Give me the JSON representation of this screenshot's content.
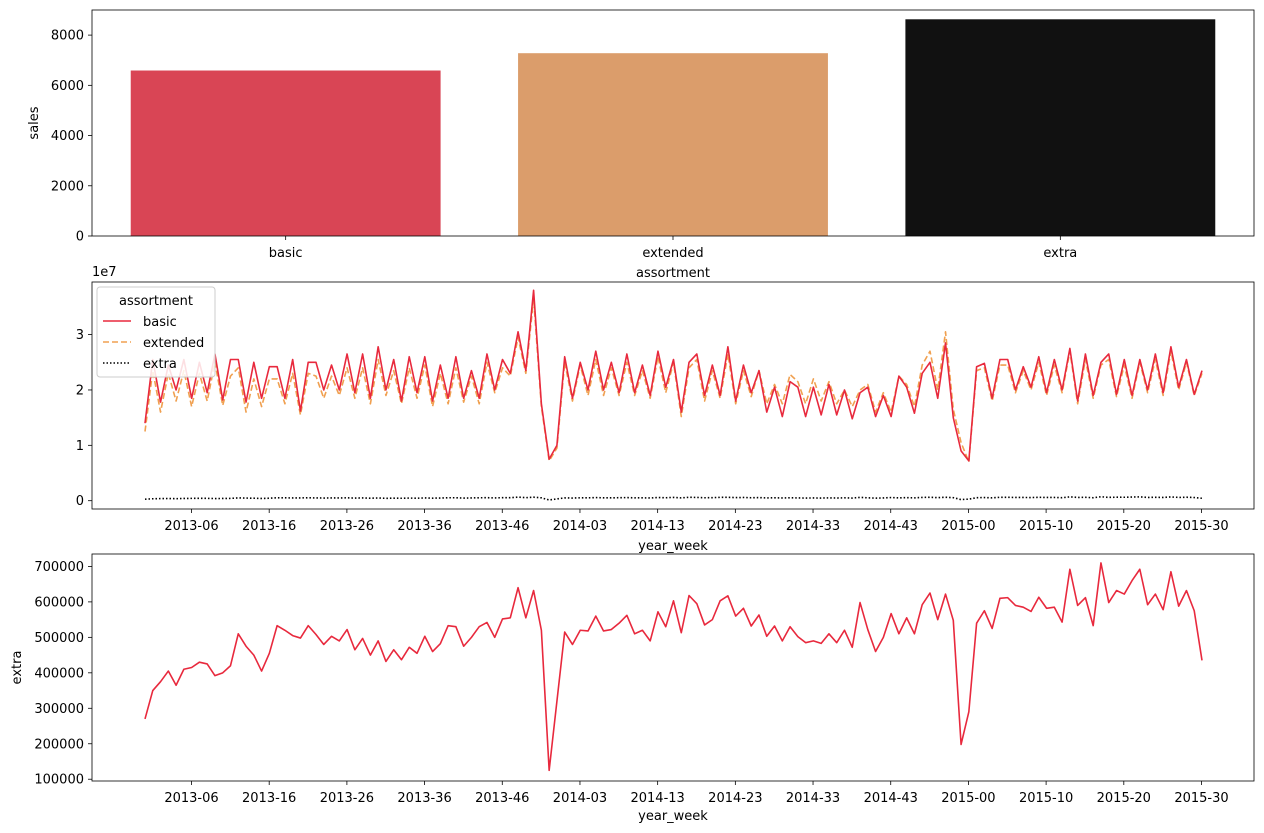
{
  "chart_data": [
    {
      "type": "bar",
      "categories": [
        "basic",
        "extended",
        "extra"
      ],
      "values": [
        6590,
        7280,
        8630
      ],
      "colors": [
        "#d94555",
        "#db9d6b",
        "#111111"
      ],
      "xlabel": "assortment",
      "ylabel": "sales",
      "ylim": [
        0,
        9000
      ],
      "yticks": [
        "0",
        "2000",
        "4000",
        "6000",
        "8000"
      ]
    },
    {
      "type": "line",
      "xlabel": "year_week",
      "ylabel": "",
      "y_multiplier_label": "1e7",
      "yticks": [
        "0",
        "1",
        "2",
        "3"
      ],
      "ylim": [
        -0.15,
        3.95
      ],
      "xticks": [
        "2013-06",
        "2013-16",
        "2013-26",
        "2013-36",
        "2013-46",
        "2014-03",
        "2014-13",
        "2014-23",
        "2014-33",
        "2014-43",
        "2015-00",
        "2015-10",
        "2015-20",
        "2015-30"
      ],
      "legend": {
        "title": "assortment",
        "position": "top-left"
      },
      "series": [
        {
          "name": "basic",
          "color": "#e8293d",
          "style": "solid",
          "values": [
            1.4,
            2.55,
            1.78,
            2.45,
            2.0,
            2.55,
            1.85,
            2.5,
            1.95,
            2.65,
            1.82,
            2.55,
            2.55,
            1.78,
            2.5,
            1.85,
            2.42,
            2.42,
            1.85,
            2.55,
            1.62,
            2.5,
            2.5,
            2.0,
            2.45,
            2.0,
            2.65,
            1.95,
            2.65,
            1.85,
            2.78,
            2.0,
            2.55,
            1.8,
            2.6,
            1.95,
            2.6,
            1.8,
            2.45,
            1.85,
            2.6,
            1.85,
            2.35,
            1.85,
            2.65,
            2.0,
            2.55,
            2.3,
            3.05,
            2.35,
            3.8,
            1.75,
            0.75,
            1.0,
            2.6,
            1.85,
            2.5,
            2.0,
            2.7,
            2.0,
            2.5,
            1.95,
            2.65,
            1.95,
            2.45,
            1.9,
            2.7,
            2.05,
            2.55,
            1.6,
            2.5,
            2.65,
            1.9,
            2.45,
            1.9,
            2.78,
            1.8,
            2.45,
            1.95,
            2.35,
            1.6,
            2.05,
            1.52,
            2.15,
            2.05,
            1.52,
            2.05,
            1.55,
            2.1,
            1.55,
            2.0,
            1.48,
            1.95,
            2.05,
            1.52,
            1.9,
            1.52,
            2.25,
            2.05,
            1.58,
            2.3,
            2.5,
            1.85,
            2.85,
            1.5,
            0.9,
            0.72,
            2.42,
            2.48,
            1.85,
            2.55,
            2.55,
            2.0,
            2.42,
            2.05,
            2.6,
            1.95,
            2.55,
            2.0,
            2.75,
            1.8,
            2.65,
            1.9,
            2.5,
            2.65,
            1.92,
            2.55,
            1.9,
            2.55,
            2.0,
            2.65,
            1.95,
            2.78,
            2.05,
            2.55,
            1.92,
            2.35
          ]
        },
        {
          "name": "extended",
          "color": "#f0a050",
          "style": "dashed",
          "values": [
            1.25,
            2.35,
            1.6,
            2.3,
            1.8,
            2.35,
            1.7,
            2.3,
            1.8,
            2.5,
            1.72,
            2.25,
            2.4,
            1.6,
            2.2,
            1.7,
            2.2,
            2.2,
            1.75,
            2.3,
            1.55,
            2.3,
            2.25,
            1.85,
            2.25,
            1.9,
            2.4,
            1.85,
            2.4,
            1.75,
            2.55,
            1.9,
            2.35,
            1.75,
            2.4,
            1.85,
            2.45,
            1.7,
            2.3,
            1.75,
            2.4,
            1.78,
            2.25,
            1.75,
            2.5,
            1.95,
            2.4,
            2.25,
            2.95,
            2.3,
            3.65,
            1.7,
            0.72,
            0.95,
            2.5,
            1.8,
            2.45,
            1.9,
            2.55,
            1.9,
            2.4,
            1.9,
            2.5,
            1.9,
            2.35,
            1.85,
            2.6,
            1.95,
            2.5,
            1.52,
            2.4,
            2.55,
            1.8,
            2.35,
            1.85,
            2.65,
            1.75,
            2.35,
            1.88,
            2.35,
            1.75,
            2.1,
            1.75,
            2.28,
            2.15,
            1.75,
            2.2,
            1.8,
            2.15,
            1.75,
            2.0,
            1.7,
            2.0,
            2.1,
            1.6,
            1.95,
            1.6,
            2.25,
            2.1,
            1.7,
            2.45,
            2.7,
            2.0,
            3.05,
            1.65,
            1.05,
            0.7,
            2.35,
            2.4,
            1.8,
            2.45,
            2.45,
            1.95,
            2.35,
            2.0,
            2.5,
            1.9,
            2.45,
            1.95,
            2.7,
            1.75,
            2.55,
            1.85,
            2.45,
            2.55,
            1.88,
            2.45,
            1.85,
            2.5,
            1.95,
            2.55,
            1.9,
            2.7,
            2.0,
            2.5,
            1.9,
            2.3
          ]
        },
        {
          "name": "extra",
          "color": "#000000",
          "style": "dotted",
          "values": [
            0.027,
            0.035,
            0.038,
            0.04,
            0.036,
            0.041,
            0.042,
            0.043,
            0.042,
            0.039,
            0.04,
            0.042,
            0.051,
            0.047,
            0.045,
            0.04,
            0.045,
            0.053,
            0.052,
            0.05,
            0.05,
            0.053,
            0.05,
            0.048,
            0.05,
            0.049,
            0.052,
            0.047,
            0.05,
            0.045,
            0.049,
            0.043,
            0.046,
            0.044,
            0.047,
            0.045,
            0.05,
            0.046,
            0.048,
            0.053,
            0.053,
            0.047,
            0.05,
            0.053,
            0.054,
            0.05,
            0.055,
            0.055,
            0.064,
            0.055,
            0.063,
            0.052,
            0.013,
            0.032,
            0.051,
            0.048,
            0.052,
            0.052,
            0.056,
            0.052,
            0.052,
            0.054,
            0.056,
            0.051,
            0.052,
            0.049,
            0.057,
            0.053,
            0.06,
            0.051,
            0.061,
            0.059,
            0.053,
            0.055,
            0.06,
            0.061,
            0.056,
            0.058,
            0.053,
            0.056,
            0.05,
            0.053,
            0.049,
            0.053,
            0.05,
            0.048,
            0.049,
            0.048,
            0.051,
            0.048,
            0.052,
            0.047,
            0.06,
            0.052,
            0.046,
            0.05,
            0.057,
            0.051,
            0.055,
            0.051,
            0.059,
            0.062,
            0.055,
            0.062,
            0.055,
            0.02,
            0.029,
            0.054,
            0.057,
            0.052,
            0.061,
            0.061,
            0.059,
            0.058,
            0.057,
            0.061,
            0.058,
            0.058,
            0.054,
            0.069,
            0.059,
            0.061,
            0.053,
            0.071,
            0.06,
            0.063,
            0.062,
            0.066,
            0.069,
            0.059,
            0.062,
            0.058,
            0.068,
            0.059,
            0.063,
            0.057,
            0.044
          ]
        }
      ]
    },
    {
      "type": "line",
      "xlabel": "year_week",
      "ylabel": "extra",
      "ylim": [
        95000,
        735000
      ],
      "yticks": [
        "100000",
        "200000",
        "300000",
        "400000",
        "500000",
        "600000",
        "700000"
      ],
      "xticks": [
        "2013-06",
        "2013-16",
        "2013-26",
        "2013-36",
        "2013-46",
        "2014-03",
        "2014-13",
        "2014-23",
        "2014-33",
        "2014-43",
        "2015-00",
        "2015-10",
        "2015-20",
        "2015-30"
      ],
      "series": [
        {
          "name": "extra",
          "color": "#e8293d",
          "values": [
            270000,
            350000,
            375000,
            405000,
            365000,
            410000,
            415000,
            430000,
            425000,
            392000,
            400000,
            420000,
            510000,
            475000,
            450000,
            405000,
            455000,
            533000,
            520000,
            505000,
            498000,
            533000,
            508000,
            480000,
            503000,
            490000,
            522000,
            465000,
            497000,
            450000,
            490000,
            432000,
            465000,
            437000,
            472000,
            455000,
            503000,
            460000,
            482000,
            533000,
            530000,
            475000,
            500000,
            530000,
            542000,
            500000,
            552000,
            555000,
            640000,
            555000,
            632000,
            520000,
            125000,
            320000,
            515000,
            480000,
            520000,
            518000,
            560000,
            518000,
            522000,
            540000,
            562000,
            510000,
            520000,
            490000,
            572000,
            530000,
            603000,
            513000,
            618000,
            595000,
            535000,
            550000,
            603000,
            617000,
            560000,
            582000,
            532000,
            563000,
            503000,
            532000,
            490000,
            530000,
            502000,
            485000,
            490000,
            483000,
            510000,
            485000,
            520000,
            472000,
            598000,
            522000,
            460000,
            500000,
            567000,
            510000,
            555000,
            510000,
            592000,
            625000,
            550000,
            622000,
            548000,
            198000,
            290000,
            540000,
            575000,
            525000,
            610000,
            612000,
            590000,
            585000,
            573000,
            613000,
            582000,
            585000,
            543000,
            692000,
            590000,
            612000,
            533000,
            710000,
            598000,
            632000,
            622000,
            660000,
            692000,
            592000,
            622000,
            578000,
            685000,
            588000,
            632000,
            575000,
            435000
          ]
        }
      ]
    }
  ]
}
